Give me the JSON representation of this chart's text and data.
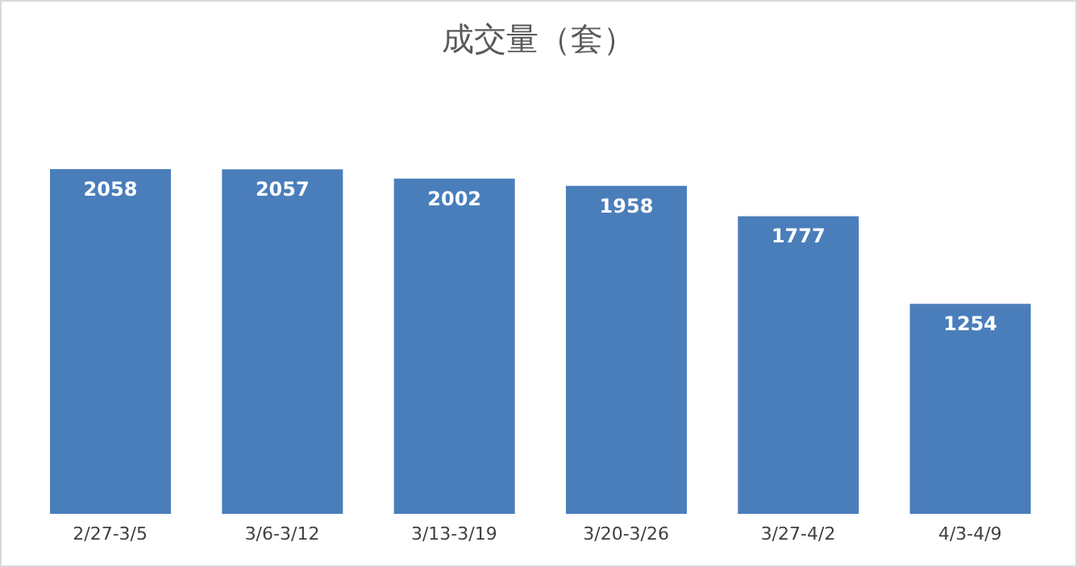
{
  "chart_data": {
    "type": "bar",
    "title": "成交量（套）",
    "categories": [
      "2/27-3/5",
      "3/6-3/12",
      "3/13-3/19",
      "3/20-3/26",
      "3/27-4/2",
      "4/3-4/9"
    ],
    "values": [
      2058,
      2057,
      2002,
      1958,
      1777,
      1254
    ],
    "color": "#4a7ebb",
    "data_labels": true,
    "grid": false,
    "legend": false
  }
}
